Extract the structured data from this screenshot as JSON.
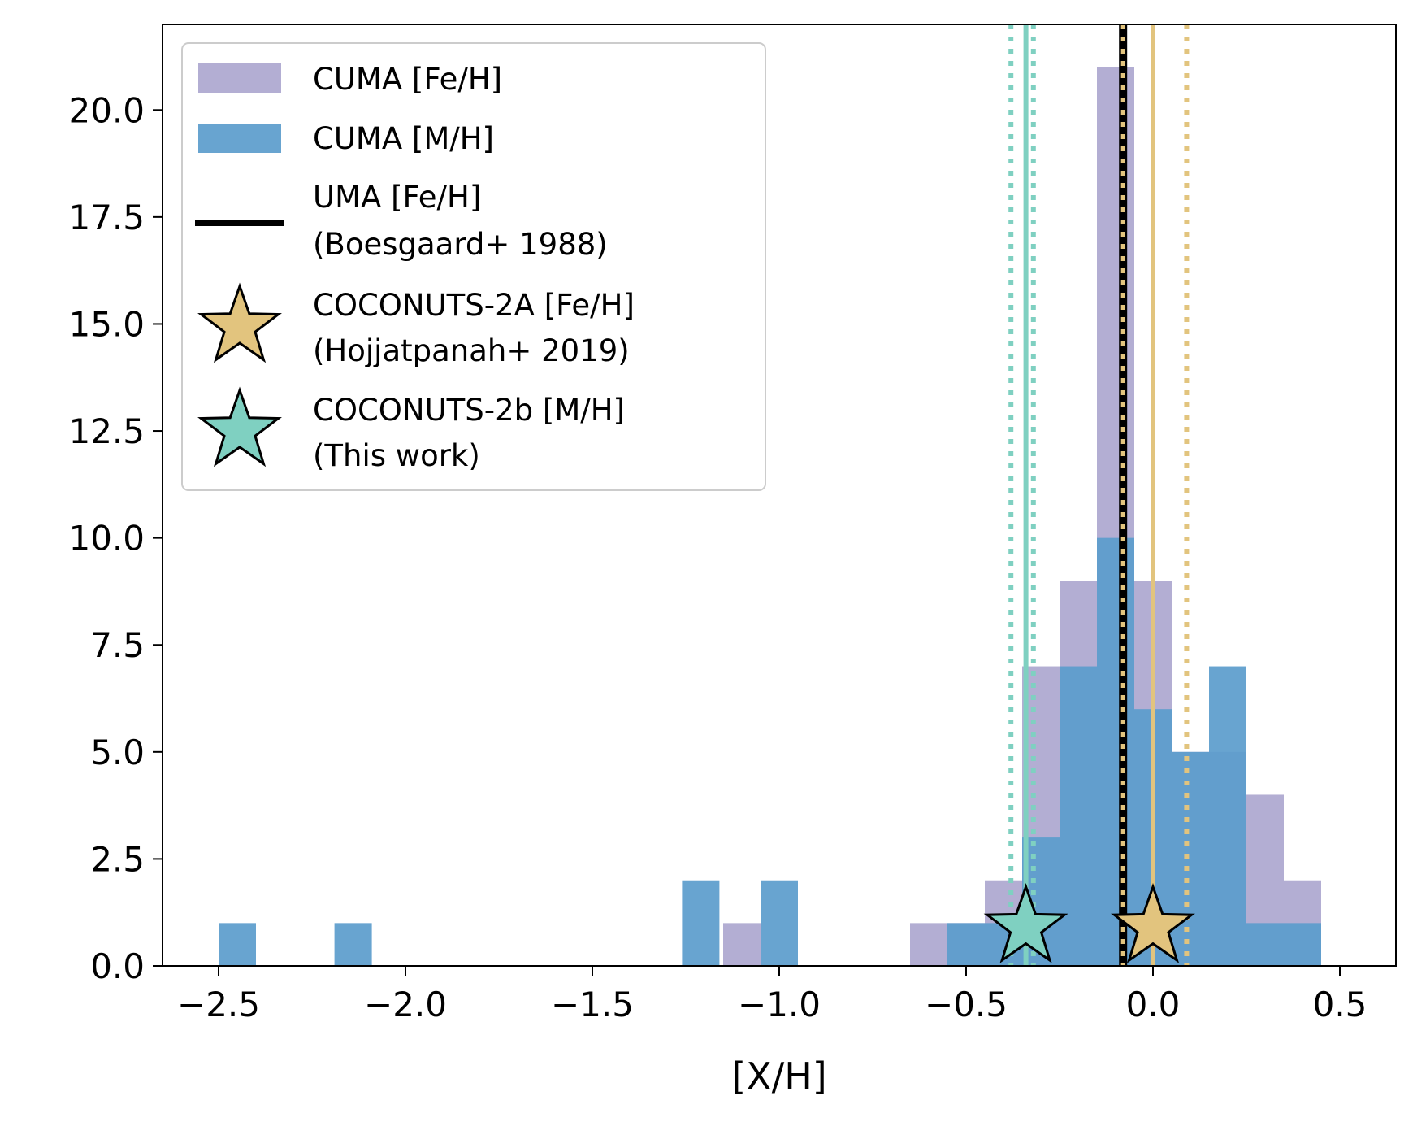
{
  "chart_data": {
    "type": "bar",
    "xlabel": "[X/H]",
    "ylabel": "",
    "xlim": [
      -2.65,
      0.65
    ],
    "ylim": [
      0,
      22
    ],
    "grid": false,
    "legend_placement": "top-left",
    "bin_width": 0.1,
    "x_ticks": [
      -2.5,
      -2.0,
      -1.5,
      -1.0,
      -0.5,
      0.0,
      0.5
    ],
    "x_tick_labels": [
      "−2.5",
      "−2.0",
      "−1.5",
      "−1.0",
      "−0.5",
      "0.0",
      "0.5"
    ],
    "y_ticks": [
      0,
      2.5,
      5,
      7.5,
      10,
      12.5,
      15,
      17.5,
      20
    ],
    "y_tick_labels": [
      "0.0",
      "2.5",
      "5.0",
      "7.5",
      "10.0",
      "12.5",
      "15.0",
      "17.5",
      "20.0"
    ],
    "series": [
      {
        "name": "CUMA [Fe/H]",
        "type": "histogram",
        "color": "#b3aed3",
        "bins": [
          {
            "x0": -1.15,
            "x1": -1.05,
            "count": 1
          },
          {
            "x0": -0.65,
            "x1": -0.55,
            "count": 1
          },
          {
            "x0": -0.55,
            "x1": -0.45,
            "count": 1
          },
          {
            "x0": -0.45,
            "x1": -0.35,
            "count": 2
          },
          {
            "x0": -0.35,
            "x1": -0.25,
            "count": 7
          },
          {
            "x0": -0.25,
            "x1": -0.15,
            "count": 9
          },
          {
            "x0": -0.15,
            "x1": -0.05,
            "count": 21
          },
          {
            "x0": -0.05,
            "x1": 0.05,
            "count": 9
          },
          {
            "x0": 0.05,
            "x1": 0.15,
            "count": 5
          },
          {
            "x0": 0.15,
            "x1": 0.25,
            "count": 5
          },
          {
            "x0": 0.25,
            "x1": 0.35,
            "count": 4
          },
          {
            "x0": 0.35,
            "x1": 0.45,
            "count": 2
          }
        ]
      },
      {
        "name": "CUMA [M/H]",
        "type": "histogram",
        "color": "#5b9ccc",
        "bins": [
          {
            "x0": -2.5,
            "x1": -2.4,
            "count": 1
          },
          {
            "x0": -2.19,
            "x1": -2.09,
            "count": 1
          },
          {
            "x0": -1.26,
            "x1": -1.16,
            "count": 2
          },
          {
            "x0": -1.05,
            "x1": -0.95,
            "count": 2
          },
          {
            "x0": -0.55,
            "x1": -0.45,
            "count": 1
          },
          {
            "x0": -0.45,
            "x1": -0.35,
            "count": 1
          },
          {
            "x0": -0.35,
            "x1": -0.25,
            "count": 3
          },
          {
            "x0": -0.25,
            "x1": -0.15,
            "count": 7
          },
          {
            "x0": -0.15,
            "x1": -0.05,
            "count": 10
          },
          {
            "x0": -0.05,
            "x1": 0.05,
            "count": 6
          },
          {
            "x0": 0.05,
            "x1": 0.15,
            "count": 5
          },
          {
            "x0": 0.15,
            "x1": 0.25,
            "count": 7
          },
          {
            "x0": 0.25,
            "x1": 0.35,
            "count": 1
          },
          {
            "x0": 0.35,
            "x1": 0.45,
            "count": 1
          }
        ]
      },
      {
        "name": "UMA [Fe/H]",
        "subname": "(Boesgaard+ 1988)",
        "type": "vline",
        "color": "#000000",
        "x": -0.08
      },
      {
        "name": "COCONUTS-2A [Fe/H]",
        "subname": "(Hojjatpanah+ 2019)",
        "type": "star",
        "color": "#e2c47e",
        "x": 0.0,
        "y": 0.9,
        "x_lower": -0.08,
        "x_upper": 0.09
      },
      {
        "name": "COCONUTS-2b [M/H]",
        "subname": "(This work)",
        "type": "star",
        "color": "#7fd0c1",
        "x": -0.34,
        "y": 0.9,
        "x_lower": -0.38,
        "x_upper": -0.32
      }
    ]
  }
}
